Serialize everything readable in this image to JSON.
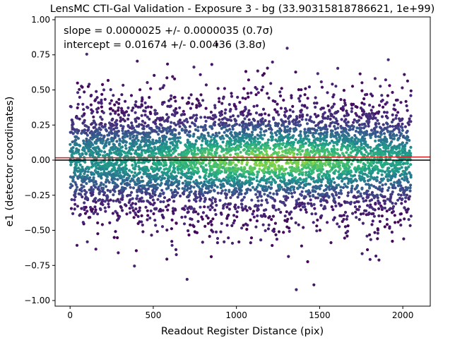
{
  "chart_data": {
    "type": "scatter",
    "title": "LensMC CTI-Gal Validation - Exposure 3 - bg (33.90315818786621, 1e+99)",
    "xlabel": "Readout Register Distance (pix)",
    "ylabel": "e1 (detector coordinates)",
    "xlim": [
      -90,
      2165
    ],
    "ylim": [
      -1.04,
      1.02
    ],
    "xticks": [
      0,
      500,
      1000,
      1500,
      2000
    ],
    "xtick_labels": [
      "0",
      "500",
      "1000",
      "1500",
      "2000"
    ],
    "yticks": [
      -1.0,
      -0.75,
      -0.5,
      -0.25,
      0.0,
      0.25,
      0.5,
      0.75,
      1.0
    ],
    "ytick_labels": [
      "−1.00",
      "−0.75",
      "−0.50",
      "−0.25",
      "0.00",
      "0.25",
      "0.50",
      "0.75",
      "1.00"
    ],
    "grid": false,
    "annotations": [
      {
        "text": "slope = 0.0000025 +/- 0.0000035 (0.7σ)"
      },
      {
        "text": "intercept = 0.01674 +/- 0.00436 (3.8σ)"
      }
    ],
    "fit_line": {
      "slope": 2.5e-06,
      "intercept": 0.01674,
      "color": "#d62728"
    },
    "zero_line": {
      "y": 0.0,
      "color": "#000000"
    },
    "scatter": {
      "x_range": [
        0,
        2050
      ],
      "y_center": 0.0,
      "y_spread_std": 0.22,
      "y_extent": [
        -0.95,
        0.88
      ],
      "colormap": "viridis",
      "low_density_color": "#440154",
      "high_density_color": "#fde725"
    }
  }
}
